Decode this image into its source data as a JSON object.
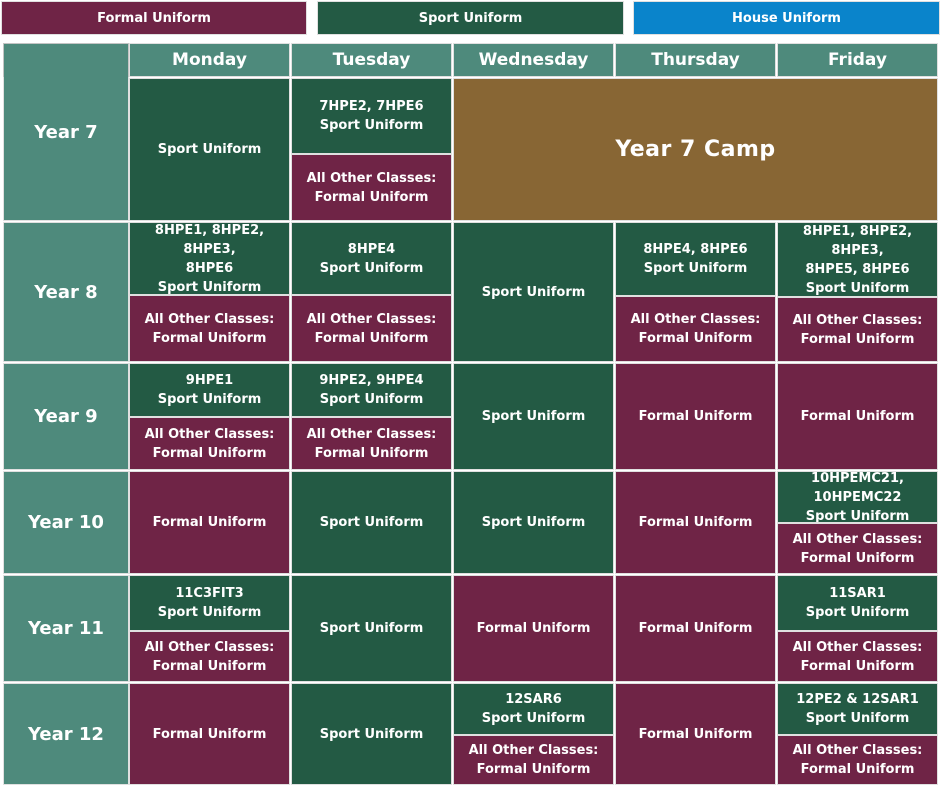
{
  "colors": {
    "formal": "#6f2446",
    "sport": "#235a44",
    "house": "#0a84cb",
    "header": "#4e8a7c",
    "camp": "#886634"
  },
  "legend": {
    "formal": "Formal Uniform",
    "sport": "Sport Uniform",
    "house": "House Uniform"
  },
  "days": [
    "Monday",
    "Tuesday",
    "Wednesday",
    "Thursday",
    "Friday"
  ],
  "years": [
    "Year 7",
    "Year 8",
    "Year 9",
    "Year 10",
    "Year 11",
    "Year 12"
  ],
  "common": {
    "sport_uniform": "Sport Uniform",
    "formal_uniform": "Formal  Uniform",
    "formal_uniform_single": "Formal Uniform",
    "all_other": "All Other Classes:"
  },
  "y7": {
    "tue_classes": "7HPE2, 7HPE6",
    "camp": "Year 7 Camp"
  },
  "y8": {
    "mon_classes_1": "8HPE1, 8HPE2, 8HPE3,",
    "mon_classes_2": "8HPE6",
    "tue_classes": "8HPE4",
    "thu_classes": "8HPE4, 8HPE6",
    "fri_classes_1": "8HPE1, 8HPE2, 8HPE3,",
    "fri_classes_2": "8HPE5, 8HPE6"
  },
  "y9": {
    "mon_classes": "9HPE1",
    "tue_classes": "9HPE2, 9HPE4"
  },
  "y10": {
    "fri_classes": "10HPEMC21, 10HPEMC22"
  },
  "y11": {
    "mon_classes": "11C3FIT3",
    "fri_classes": "11SAR1"
  },
  "y12": {
    "wed_classes": "12SAR6",
    "fri_classes": "12PE2 & 12SAR1"
  }
}
